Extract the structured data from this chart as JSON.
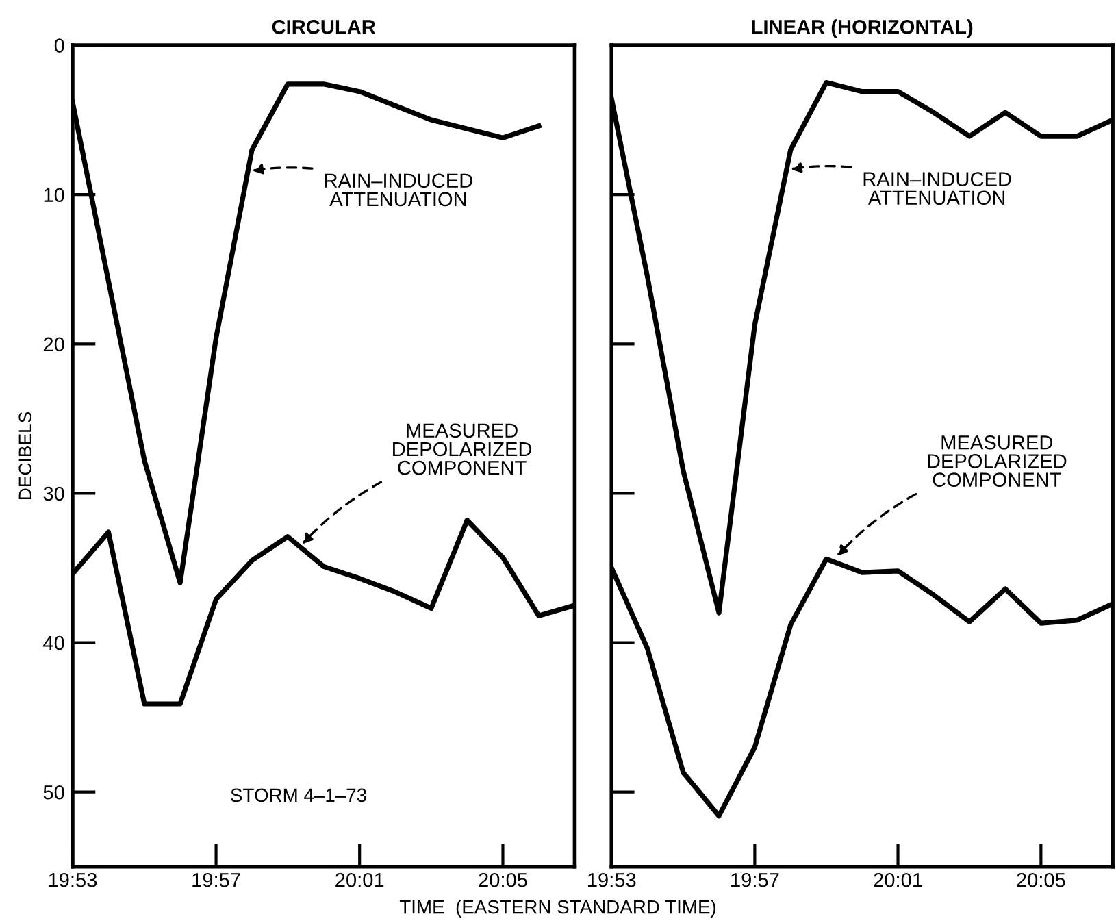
{
  "chart_data": [
    {
      "type": "line",
      "title": "CIRCULAR",
      "ylabel": "DECIBELS",
      "xlabel": "TIME  (EASTERN STANDARD TIME)",
      "series": [
        {
          "color": "#000000",
          "x": [
            19.8833,
            19.9,
            19.9167,
            19.9333,
            19.95,
            19.9667,
            19.9833,
            20.0,
            20.0167,
            20.05,
            20.0833,
            20.1
          ],
          "values": [
            3.8,
            15.8,
            27.8,
            36.0,
            19.6,
            7.0,
            2.6,
            2.6,
            3.1,
            5.0,
            6.2,
            5.4
          ]
        },
        {
          "color": "#000000",
          "x": [
            19.8833,
            19.9,
            19.9167,
            19.9333,
            19.95,
            19.9667,
            19.9833,
            20.0,
            20.0167,
            20.0333,
            20.05,
            20.0667,
            20.0833,
            20.1,
            20.1167
          ],
          "values": [
            35.4,
            32.6,
            44.1,
            44.1,
            37.1,
            34.5,
            32.9,
            34.9,
            35.7,
            36.6,
            37.7,
            31.8,
            34.3,
            38.2,
            37.5
          ]
        }
      ],
      "xlim": [
        19.8833,
        20.1167
      ],
      "xticks": [
        {
          "value": 19.8833,
          "label": "19:53"
        },
        {
          "value": 19.95,
          "label": "19:57"
        },
        {
          "value": 20.0167,
          "label": "20:01"
        },
        {
          "value": 20.0833,
          "label": "20:05"
        }
      ],
      "ylim": [
        55,
        0
      ],
      "yticks": [
        0,
        10,
        20,
        30,
        40,
        50
      ],
      "annotations": [
        {
          "text": "RAIN–INDUCED\nATTENUATION",
          "x": 19.9667,
          "y": 8.4
        },
        {
          "text": "MEASURED\nDEPOLARIZED\nCOMPONENT",
          "x": 19.99,
          "y": 33.4
        },
        "STORM 4–1–73"
      ],
      "grid": false,
      "legend": false,
      "marker": "none",
      "line_style": "solid"
    },
    {
      "type": "line",
      "title": "LINEAR (HORIZONTAL)",
      "series": [
        {
          "color": "#000000",
          "x": [
            19.8833,
            19.9,
            19.9167,
            19.9333,
            19.95,
            19.9667,
            19.9833,
            20.0,
            20.0167,
            20.0333,
            20.05,
            20.0667,
            20.0833,
            20.1,
            20.1167
          ],
          "values": [
            3.6,
            15.5,
            28.5,
            38.0,
            18.7,
            7.0,
            2.5,
            3.1,
            3.1,
            4.5,
            6.1,
            4.5,
            6.1,
            6.1,
            5.0
          ]
        },
        {
          "color": "#000000",
          "x": [
            19.8833,
            19.9,
            19.9167,
            19.9333,
            19.95,
            19.9667,
            19.9833,
            20.0,
            20.0167,
            20.0333,
            20.05,
            20.0667,
            20.0833,
            20.1,
            20.1167
          ],
          "values": [
            35.0,
            40.4,
            48.7,
            51.6,
            47.0,
            38.8,
            34.4,
            35.3,
            35.2,
            36.8,
            38.6,
            36.4,
            38.7,
            38.5,
            37.4
          ]
        }
      ],
      "xlim": [
        19.8833,
        20.1167
      ],
      "xticks": [
        {
          "value": 19.8833,
          "label": "19:53"
        },
        {
          "value": 19.95,
          "label": "19:57"
        },
        {
          "value": 20.0167,
          "label": "20:01"
        },
        {
          "value": 20.0833,
          "label": "20:05"
        }
      ],
      "ylim": [
        55,
        0
      ],
      "yticks": [
        0,
        10,
        20,
        30,
        40,
        50
      ],
      "tick_labels": "x",
      "annotations": [
        {
          "text": "RAIN–INDUCED\nATTENUATION",
          "x": 19.9667,
          "y": 8.3
        },
        {
          "text": "MEASURED\nDEPOLARIZED\nCOMPONENT",
          "x": 19.9883,
          "y": 34.2
        }
      ],
      "grid": false,
      "legend": false,
      "marker": "none",
      "line_style": "solid"
    }
  ]
}
